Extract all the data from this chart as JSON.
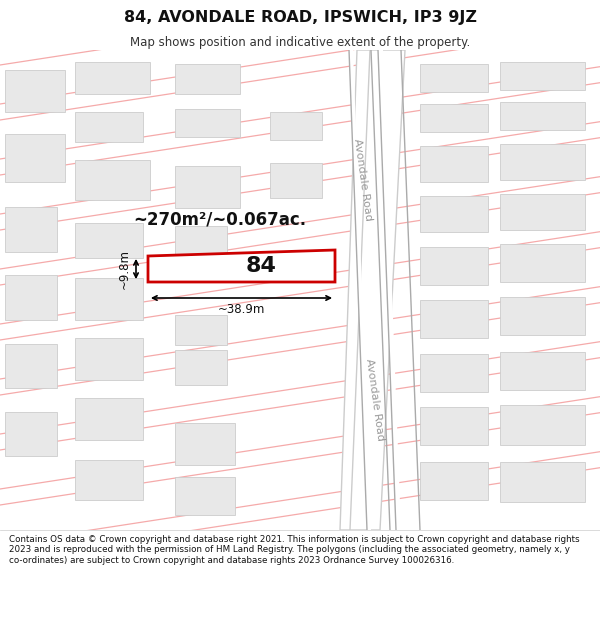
{
  "title": "84, AVONDALE ROAD, IPSWICH, IP3 9JZ",
  "subtitle": "Map shows position and indicative extent of the property.",
  "copyright": "Contains OS data © Crown copyright and database right 2021. This information is subject to Crown copyright and database rights 2023 and is reproduced with the permission of HM Land Registry. The polygons (including the associated geometry, namely x, y co-ordinates) are subject to Crown copyright and database rights 2023 Ordnance Survey 100026316.",
  "map_bg": "#ffffff",
  "road_line_color": "#f5aaaa",
  "building_fill": "#e8e8e8",
  "building_edge": "#cccccc",
  "property_fill": "#ffffff",
  "property_edge": "#cc0000",
  "area_text": "~270m²/~0.067ac.",
  "width_text": "~38.9m",
  "height_text": "~9.8m",
  "number_text": "84",
  "road_label": "Avondale Road"
}
